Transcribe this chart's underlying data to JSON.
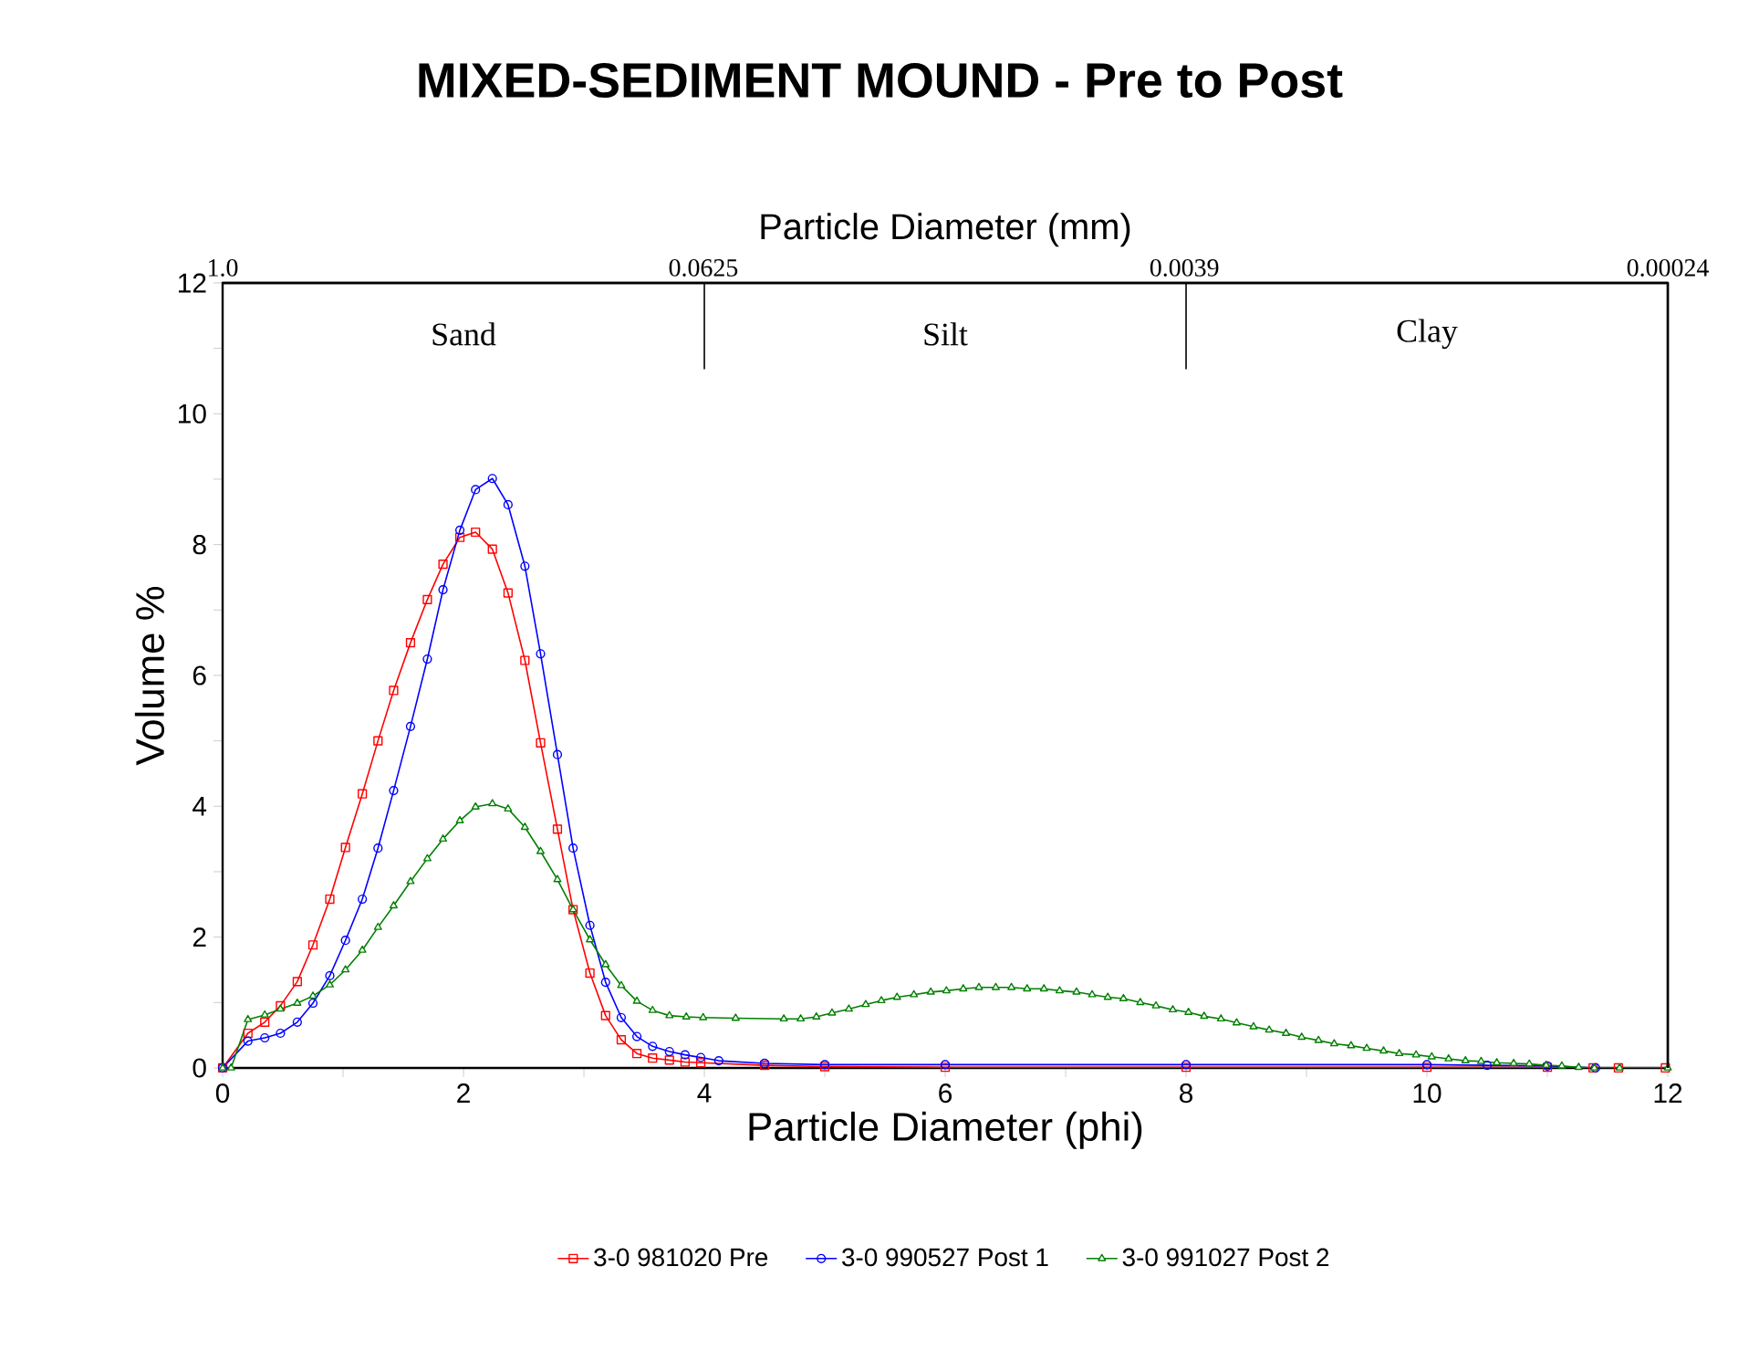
{
  "chart_data": {
    "type": "line",
    "title": "MIXED-SEDIMENT MOUND - Pre to Post",
    "xlabel": "Particle Diameter (phi)",
    "ylabel": "Volume %",
    "x2label": "Particle Diameter (mm)",
    "xlim": [
      0,
      12
    ],
    "ylim": [
      0,
      12
    ],
    "xticks": [
      0,
      {
        "value": 1,
        "label": null
      },
      2,
      {
        "value": 3,
        "label": null
      },
      4,
      {
        "value": 5,
        "label": null
      },
      6,
      {
        "value": 7,
        "label": null
      },
      8,
      {
        "value": 9,
        "label": null
      },
      10,
      {
        "value": 11,
        "label": null
      },
      12
    ],
    "yticks": [
      0,
      {
        "value": 1,
        "label": null
      },
      2,
      {
        "value": 3,
        "label": null
      },
      4,
      {
        "value": 5,
        "label": null
      },
      6,
      {
        "value": 7,
        "label": null
      },
      8,
      {
        "value": 9,
        "label": null
      },
      10,
      {
        "value": 11,
        "label": null
      },
      12
    ],
    "x2lim": [
      1,
      0.00024
    ],
    "log": "x2",
    "x2ticks": [
      {
        "value": 1,
        "label": "1.0"
      },
      0.0625,
      0.0039,
      0.00024
    ],
    "annotations": [
      "Sand",
      "Silt",
      "Clay"
    ],
    "ref_lines": [
      {
        "axis": "x",
        "value": 4,
        "color": "#000000"
      },
      {
        "axis": "x",
        "value": 8,
        "color": "#000000"
      }
    ],
    "grid": false,
    "legend": "bottom",
    "line_style": "solid",
    "series": [
      {
        "name": "3-0 981020 Pre",
        "color": "#ff0000",
        "marker": "square",
        "x": [
          0,
          0.21,
          0.35,
          0.48,
          0.62,
          0.75,
          0.89,
          1.02,
          1.16,
          1.29,
          1.42,
          1.56,
          1.7,
          1.83,
          1.97,
          2.1,
          2.24,
          2.37,
          2.51,
          2.64,
          2.78,
          2.91,
          3.05,
          3.18,
          3.31,
          3.44,
          3.57,
          3.71,
          3.84,
          3.97,
          4.5,
          5,
          6,
          8,
          10,
          11,
          11.38,
          11.59,
          11.98
        ],
        "values": [
          0,
          0.53,
          0.7,
          0.95,
          1.32,
          1.88,
          2.58,
          3.37,
          4.19,
          5.0,
          5.77,
          6.5,
          7.16,
          7.7,
          8.11,
          8.19,
          7.93,
          7.26,
          6.23,
          4.97,
          3.65,
          2.42,
          1.45,
          0.8,
          0.43,
          0.22,
          0.15,
          0.12,
          0.09,
          0.08,
          0.04,
          0.02,
          0.01,
          0.01,
          0.01,
          0.01,
          0,
          0,
          0
        ]
      },
      {
        "name": "3-0 990527 Post 1",
        "color": "#0000ff",
        "marker": "circle",
        "x": [
          0,
          0.21,
          0.35,
          0.48,
          0.62,
          0.75,
          0.89,
          1.02,
          1.16,
          1.29,
          1.42,
          1.56,
          1.7,
          1.83,
          1.97,
          2.1,
          2.24,
          2.37,
          2.51,
          2.64,
          2.78,
          2.91,
          3.05,
          3.18,
          3.31,
          3.44,
          3.57,
          3.71,
          3.84,
          3.97,
          4.12,
          4.5,
          5,
          6,
          8,
          10,
          10.5,
          11,
          11.4
        ],
        "values": [
          0,
          0.41,
          0.46,
          0.53,
          0.7,
          0.99,
          1.41,
          1.95,
          2.58,
          3.36,
          4.24,
          5.22,
          6.25,
          7.31,
          8.22,
          8.84,
          9.01,
          8.61,
          7.67,
          6.33,
          4.79,
          3.36,
          2.18,
          1.31,
          0.77,
          0.48,
          0.33,
          0.25,
          0.2,
          0.16,
          0.11,
          0.07,
          0.05,
          0.05,
          0.05,
          0.05,
          0.04,
          0.03,
          0
        ]
      },
      {
        "name": "3-0 991027 Post 2",
        "color": "#008000",
        "marker": "triangle",
        "x": [
          0,
          0.07,
          0.21,
          0.35,
          0.48,
          0.62,
          0.75,
          0.89,
          1.02,
          1.16,
          1.29,
          1.42,
          1.56,
          1.7,
          1.83,
          1.97,
          2.1,
          2.24,
          2.37,
          2.51,
          2.64,
          2.78,
          2.91,
          3.05,
          3.18,
          3.31,
          3.44,
          3.57,
          3.71,
          3.85,
          3.99,
          4.26,
          4.66,
          4.8,
          4.93,
          5.06,
          5.2,
          5.34,
          5.47,
          5.6,
          5.74,
          5.88,
          6.01,
          6.15,
          6.28,
          6.42,
          6.55,
          6.68,
          6.82,
          6.95,
          7.09,
          7.22,
          7.35,
          7.48,
          7.62,
          7.75,
          7.89,
          8.02,
          8.15,
          8.29,
          8.42,
          8.56,
          8.69,
          8.83,
          8.96,
          9.1,
          9.23,
          9.37,
          9.5,
          9.64,
          9.77,
          9.91,
          10.04,
          10.18,
          10.32,
          10.45,
          10.58,
          10.72,
          10.85,
          10.99,
          11.12,
          11.26,
          11.39,
          11.6,
          12
        ],
        "values": [
          0,
          0,
          0.74,
          0.81,
          0.9,
          0.99,
          1.1,
          1.27,
          1.5,
          1.8,
          2.15,
          2.48,
          2.85,
          3.2,
          3.5,
          3.78,
          3.99,
          4.04,
          3.96,
          3.68,
          3.31,
          2.88,
          2.42,
          1.96,
          1.58,
          1.26,
          1.02,
          0.88,
          0.8,
          0.78,
          0.77,
          0.76,
          0.75,
          0.75,
          0.78,
          0.84,
          0.9,
          0.97,
          1.03,
          1.08,
          1.12,
          1.16,
          1.18,
          1.21,
          1.23,
          1.23,
          1.23,
          1.21,
          1.21,
          1.18,
          1.16,
          1.12,
          1.08,
          1.06,
          1.0,
          0.95,
          0.89,
          0.85,
          0.79,
          0.75,
          0.69,
          0.63,
          0.58,
          0.53,
          0.47,
          0.42,
          0.37,
          0.34,
          0.3,
          0.26,
          0.22,
          0.2,
          0.17,
          0.14,
          0.11,
          0.1,
          0.08,
          0.07,
          0.06,
          0.04,
          0.03,
          0.01,
          0,
          0,
          0
        ]
      }
    ]
  }
}
